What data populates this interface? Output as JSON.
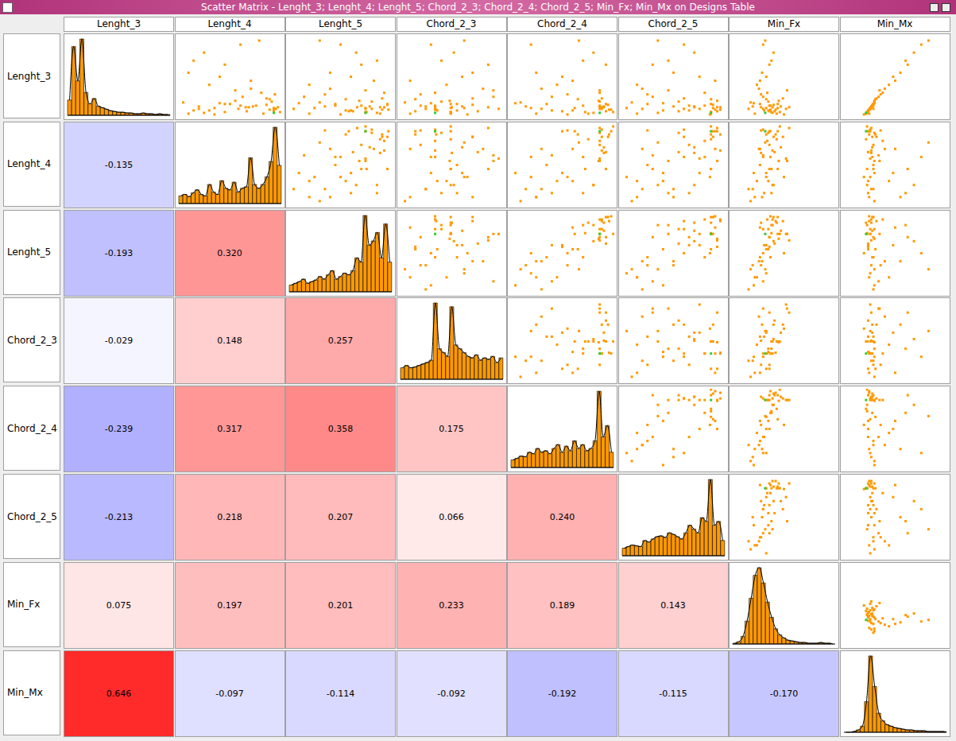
{
  "chart_data": {
    "type": "scatter_matrix",
    "title": "Scatter Matrix - Lenght_3; Lenght_4; Lenght_5; Chord_2_3; Chord_2_4; Chord_2_5; Min_Fx; Min_Mx on Designs Table",
    "tick_labels": false,
    "variables": [
      {
        "name": "Lenght_3",
        "lim": [
          0,
          1
        ]
      },
      {
        "name": "Lenght_4",
        "lim": [
          0,
          1
        ]
      },
      {
        "name": "Lenght_5",
        "lim": [
          0,
          1
        ]
      },
      {
        "name": "Chord_2_3",
        "lim": [
          0,
          1
        ]
      },
      {
        "name": "Chord_2_4",
        "lim": [
          0,
          1
        ]
      },
      {
        "name": "Chord_2_5",
        "lim": [
          0,
          1
        ]
      },
      {
        "name": "Min_Fx",
        "lim": [
          0,
          1
        ]
      },
      {
        "name": "Min_Mx",
        "lim": [
          0,
          1
        ]
      }
    ],
    "point_color": "#ff9900",
    "selected_color": "#33cc33",
    "histogram_color": "#ff9900",
    "selected": [
      0
    ],
    "designs": [
      [
        0.05,
        0.92,
        0.74,
        0.34,
        0.86,
        0.86,
        0.32,
        0.22
      ],
      [
        0.12,
        0.65,
        0.88,
        0.5,
        0.9,
        0.7,
        0.28,
        0.27
      ],
      [
        0.08,
        0.3,
        0.55,
        0.36,
        0.6,
        0.4,
        0.35,
        0.24
      ],
      [
        0.15,
        0.85,
        0.95,
        0.7,
        0.94,
        0.88,
        0.4,
        0.28
      ],
      [
        0.04,
        0.1,
        0.2,
        0.1,
        0.25,
        0.15,
        0.22,
        0.25
      ],
      [
        0.2,
        0.55,
        0.68,
        0.48,
        0.85,
        0.92,
        0.45,
        0.3
      ],
      [
        0.1,
        0.94,
        0.8,
        0.34,
        0.88,
        0.6,
        0.3,
        0.26
      ],
      [
        0.35,
        0.7,
        0.4,
        0.8,
        0.3,
        0.2,
        0.26,
        0.4
      ],
      [
        0.06,
        0.45,
        0.75,
        0.49,
        0.72,
        0.86,
        0.38,
        0.23
      ],
      [
        0.13,
        0.2,
        0.35,
        0.25,
        0.15,
        0.5,
        0.2,
        0.27
      ],
      [
        0.5,
        0.4,
        0.6,
        0.6,
        0.5,
        0.75,
        0.33,
        0.48
      ],
      [
        0.09,
        0.88,
        0.9,
        0.35,
        0.95,
        0.95,
        0.42,
        0.25
      ],
      [
        0.25,
        0.62,
        0.15,
        0.9,
        0.4,
        0.3,
        0.3,
        0.34
      ],
      [
        0.14,
        0.75,
        0.7,
        0.2,
        0.86,
        0.65,
        0.36,
        0.29
      ],
      [
        0.03,
        0.35,
        0.5,
        0.65,
        0.55,
        0.85,
        0.5,
        0.2
      ],
      [
        0.7,
        0.15,
        0.85,
        0.4,
        0.7,
        0.45,
        0.38,
        0.6
      ],
      [
        0.11,
        0.92,
        0.74,
        0.49,
        0.62,
        0.88,
        0.44,
        0.26
      ],
      [
        0.18,
        0.05,
        0.3,
        0.05,
        0.1,
        0.1,
        0.18,
        0.3
      ],
      [
        0.07,
        0.66,
        0.62,
        0.75,
        0.92,
        0.55,
        0.41,
        0.24
      ],
      [
        0.3,
        0.8,
        0.92,
        0.34,
        0.86,
        0.8,
        0.34,
        0.38
      ],
      [
        0.16,
        0.5,
        0.45,
        0.55,
        0.35,
        0.25,
        0.27,
        0.29
      ],
      [
        0.12,
        0.96,
        0.66,
        0.85,
        0.86,
        0.92,
        0.55,
        0.27
      ],
      [
        0.9,
        0.6,
        0.5,
        0.3,
        0.2,
        0.6,
        0.3,
        0.75
      ],
      [
        0.05,
        0.25,
        0.85,
        0.49,
        0.8,
        0.35,
        0.39,
        0.23
      ],
      [
        0.22,
        0.88,
        0.55,
        0.15,
        0.65,
        0.86,
        0.33,
        0.31
      ],
      [
        0.13,
        0.72,
        0.78,
        0.6,
        0.9,
        0.7,
        0.47,
        0.28
      ],
      [
        0.4,
        0.3,
        0.2,
        0.45,
        0.45,
        0.15,
        0.24,
        0.44
      ],
      [
        0.09,
        0.92,
        0.96,
        0.34,
        0.97,
        0.9,
        0.37,
        0.25
      ],
      [
        0.55,
        0.1,
        0.4,
        0.7,
        0.25,
        0.5,
        0.29,
        0.55
      ],
      [
        0.1,
        0.58,
        0.74,
        0.95,
        0.86,
        0.75,
        0.52,
        0.26
      ],
      [
        0.17,
        0.4,
        0.1,
        0.3,
        0.05,
        0.4,
        0.21,
        0.3
      ],
      [
        0.04,
        0.82,
        0.88,
        0.49,
        0.75,
        0.86,
        0.43,
        0.22
      ],
      [
        0.28,
        0.93,
        0.35,
        0.2,
        0.55,
        0.25,
        0.28,
        0.36
      ],
      [
        0.12,
        0.68,
        0.92,
        0.34,
        0.88,
        0.95,
        0.39,
        0.27
      ],
      [
        0.65,
        0.45,
        0.7,
        0.85,
        0.92,
        0.3,
        0.36,
        0.62
      ],
      [
        0.08,
        0.15,
        0.6,
        0.55,
        0.4,
        0.65,
        0.31,
        0.24
      ],
      [
        0.19,
        0.9,
        0.8,
        0.4,
        0.86,
        0.55,
        0.35,
        0.3
      ],
      [
        0.45,
        0.7,
        0.82,
        0.1,
        0.6,
        0.9,
        0.27,
        0.5
      ],
      [
        0.11,
        0.35,
        0.25,
        0.62,
        0.2,
        0.05,
        0.33,
        0.26
      ],
      [
        0.06,
        0.98,
        0.74,
        0.49,
        0.99,
        0.86,
        0.46,
        0.23
      ],
      [
        0.8,
        0.25,
        0.65,
        0.52,
        0.8,
        0.7,
        0.4,
        0.68
      ],
      [
        0.14,
        0.6,
        0.45,
        0.34,
        0.7,
        0.8,
        0.37,
        0.28
      ],
      [
        0.23,
        0.85,
        0.9,
        0.7,
        0.88,
        0.6,
        0.49,
        0.32
      ],
      [
        0.1,
        0.2,
        0.05,
        0.25,
        0.3,
        0.2,
        0.16,
        0.29
      ],
      [
        0.33,
        0.55,
        0.74,
        0.9,
        0.86,
        0.45,
        0.53,
        0.35
      ],
      [
        0.07,
        0.92,
        0.58,
        0.15,
        0.5,
        0.92,
        0.36,
        0.24
      ],
      [
        0.95,
        0.78,
        0.3,
        0.62,
        0.66,
        0.35,
        0.32,
        0.82
      ],
      [
        0.16,
        0.45,
        0.95,
        0.49,
        0.92,
        0.86,
        0.44,
        0.29
      ]
    ],
    "histograms": {
      "bins": [
        0,
        0.04,
        0.08,
        0.12,
        0.16,
        0.2,
        0.24,
        0.28,
        0.32,
        0.36,
        0.4,
        0.44,
        0.48,
        0.52,
        0.56,
        0.6,
        0.64,
        0.68,
        0.72,
        0.76,
        0.8,
        0.84,
        0.88,
        0.92,
        0.96,
        1
      ],
      "counts": [
        [
          20,
          90,
          45,
          100,
          30,
          15,
          22,
          12,
          10,
          8,
          6,
          5,
          4,
          4,
          3,
          3,
          2,
          2,
          3,
          2,
          2,
          1,
          2,
          1,
          1
        ],
        [
          10,
          12,
          9,
          14,
          18,
          12,
          10,
          25,
          15,
          12,
          30,
          20,
          18,
          28,
          15,
          20,
          22,
          60,
          25,
          20,
          25,
          35,
          55,
          100,
          50
        ],
        [
          8,
          10,
          12,
          15,
          10,
          12,
          14,
          18,
          15,
          20,
          25,
          15,
          18,
          22,
          20,
          25,
          40,
          35,
          90,
          55,
          60,
          70,
          40,
          80,
          35
        ],
        [
          15,
          18,
          15,
          16,
          18,
          20,
          22,
          25,
          100,
          40,
          35,
          30,
          95,
          45,
          40,
          35,
          30,
          28,
          32,
          25,
          28,
          26,
          30,
          22,
          28
        ],
        [
          10,
          12,
          15,
          14,
          20,
          18,
          25,
          20,
          22,
          18,
          25,
          30,
          20,
          28,
          22,
          35,
          25,
          30,
          22,
          25,
          35,
          100,
          40,
          55,
          20
        ],
        [
          10,
          12,
          14,
          13,
          12,
          20,
          18,
          22,
          25,
          26,
          24,
          30,
          28,
          25,
          22,
          30,
          40,
          35,
          30,
          50,
          45,
          100,
          40,
          45,
          20
        ],
        [
          1,
          3,
          10,
          30,
          60,
          90,
          100,
          80,
          55,
          35,
          20,
          12,
          8,
          5,
          4,
          3,
          2,
          2,
          1,
          1,
          1,
          2,
          1,
          1,
          0
        ],
        [
          0,
          0,
          1,
          3,
          8,
          40,
          100,
          60,
          25,
          15,
          10,
          8,
          6,
          5,
          4,
          3,
          3,
          2,
          2,
          2,
          1,
          1,
          1,
          1,
          1
        ]
      ]
    },
    "correlations": [
      [],
      [
        -0.135
      ],
      [
        -0.193,
        0.32
      ],
      [
        -0.029,
        0.148,
        0.257
      ],
      [
        -0.239,
        0.317,
        0.358,
        0.175
      ],
      [
        -0.213,
        0.218,
        0.207,
        0.066,
        0.24
      ],
      [
        0.075,
        0.197,
        0.201,
        0.233,
        0.189,
        0.143
      ],
      [
        0.646,
        -0.097,
        -0.114,
        -0.092,
        -0.192,
        -0.115,
        -0.17
      ]
    ],
    "correlation_labels": [
      [],
      [
        "-0.135"
      ],
      [
        "-0.193",
        "0.320"
      ],
      [
        "-0.029",
        "0.148",
        "0.257"
      ],
      [
        "-0.239",
        "0.317",
        "0.358",
        "0.175"
      ],
      [
        "-0.213",
        "0.218",
        "0.207",
        "0.066",
        "0.240"
      ],
      [
        "0.075",
        "0.197",
        "0.201",
        "0.233",
        "0.189",
        "0.143"
      ],
      [
        "0.646",
        "-0.097",
        "-0.114",
        "-0.092",
        "-0.192",
        "-0.115",
        "-0.170"
      ]
    ]
  }
}
